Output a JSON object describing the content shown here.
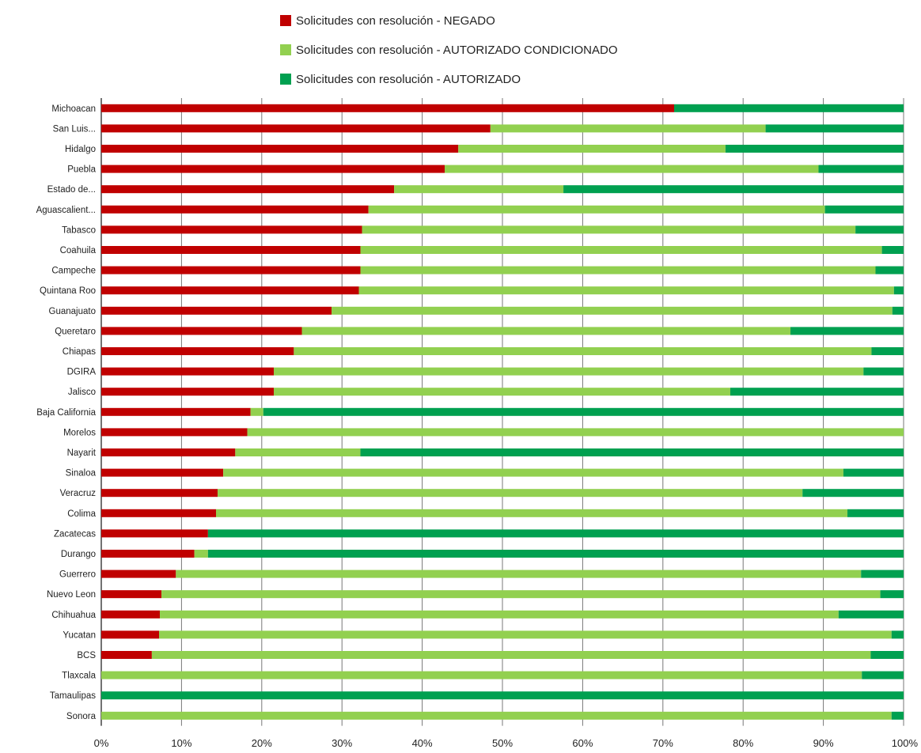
{
  "chart_data": {
    "type": "bar",
    "orientation": "horizontal",
    "stacked": "percent",
    "categories": [
      "Michoacan",
      "San Luis...",
      "Hidalgo",
      "Puebla",
      "Estado de...",
      "Aguascalient...",
      "Tabasco",
      "Coahuila",
      "Campeche",
      "Quintana Roo",
      "Guanajuato",
      "Queretaro",
      "Chiapas",
      "DGIRA",
      "Jalisco",
      "Baja California",
      "Morelos",
      "Nayarit",
      "Sinaloa",
      "Veracruz",
      "Colima",
      "Zacatecas",
      "Durango",
      "Guerrero",
      "Nuevo Leon",
      "Chihuahua",
      "Yucatan",
      "BCS",
      "Tlaxcala",
      "Tamaulipas",
      "Sonora"
    ],
    "series": [
      {
        "name": "Solicitudes con resolución - NEGADO",
        "color": "#c00000",
        "values": [
          71.4,
          48.5,
          44.5,
          42.8,
          36.5,
          33.3,
          32.5,
          32.3,
          32.3,
          32.1,
          28.7,
          25.0,
          24.0,
          21.5,
          21.5,
          18.6,
          18.2,
          16.7,
          15.2,
          14.5,
          14.3,
          13.3,
          11.6,
          9.3,
          7.5,
          7.3,
          7.2,
          6.3,
          0,
          0,
          0
        ]
      },
      {
        "name": "Solicitudes con resolución - AUTORIZADO CONDICIONADO",
        "color": "#92d050",
        "values": [
          0,
          34.3,
          33.3,
          46.6,
          21.1,
          56.9,
          61.5,
          65.0,
          64.2,
          66.7,
          69.9,
          60.9,
          72.0,
          73.5,
          56.9,
          1.6,
          81.8,
          15.6,
          77.3,
          72.9,
          78.7,
          0,
          1.7,
          85.4,
          89.6,
          84.6,
          91.3,
          89.6,
          94.8,
          0,
          98.5
        ]
      },
      {
        "name": "Solicitudes con resolución - AUTORIZADO",
        "color": "#00a050",
        "values": [
          28.6,
          17.2,
          22.2,
          10.6,
          42.4,
          9.8,
          6.0,
          2.7,
          3.5,
          1.2,
          1.4,
          14.1,
          4.0,
          5.0,
          21.6,
          79.8,
          0,
          67.7,
          7.5,
          12.6,
          7.0,
          86.7,
          86.7,
          5.3,
          2.9,
          8.1,
          1.5,
          4.1,
          5.2,
          100,
          1.5
        ]
      }
    ],
    "x_ticks": [
      "0%",
      "10%",
      "20%",
      "30%",
      "40%",
      "50%",
      "60%",
      "70%",
      "80%",
      "90%",
      "100%"
    ],
    "xlim": [
      0,
      100
    ],
    "grid": "vertical",
    "legend_position": "top"
  }
}
